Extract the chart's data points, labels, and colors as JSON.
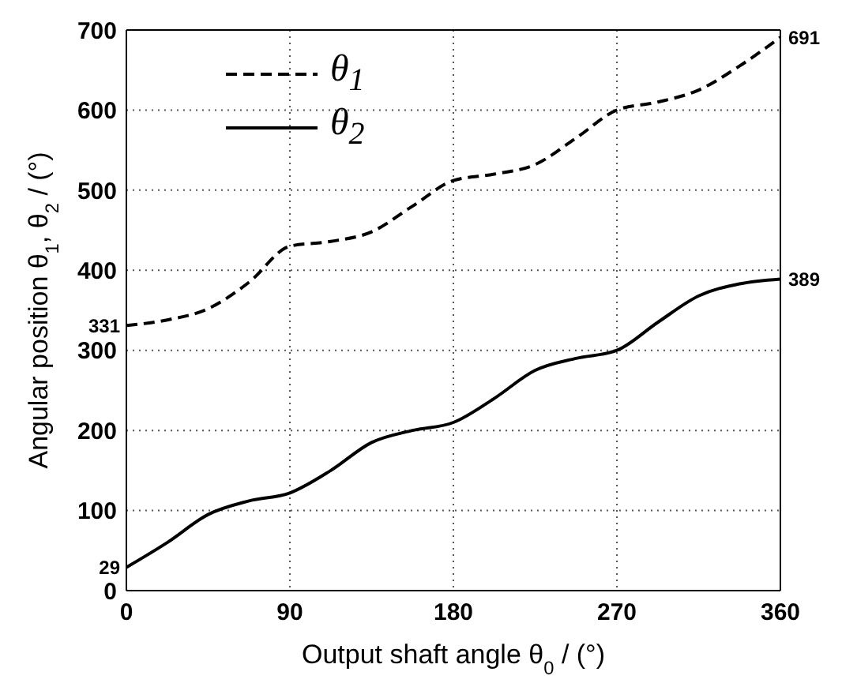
{
  "chart_data": {
    "type": "line",
    "xlabel": "Output shaft angle θ$_{0}$ / (°)",
    "ylabel": "Angular position θ$_{1}$, θ$_{2}$ / (°)",
    "x": [
      0,
      22.5,
      45,
      67.5,
      90,
      112.5,
      135,
      157.5,
      180,
      202.5,
      225,
      247.5,
      270,
      292.5,
      315,
      337.5,
      360
    ],
    "series": [
      {
        "name": "θ$_{1}$",
        "color": "#000000",
        "line_style": "dashed",
        "values": [
          331,
          338,
          352,
          385,
          430,
          436,
          448,
          480,
          512,
          520,
          532,
          565,
          600,
          610,
          625,
          655,
          691
        ],
        "value_labels": [
          "331",
          null,
          null,
          null,
          null,
          null,
          null,
          null,
          null,
          null,
          null,
          null,
          null,
          null,
          null,
          null,
          "691"
        ]
      },
      {
        "name": "θ$_{2}$",
        "color": "#000000",
        "line_style": "solid",
        "values": [
          29,
          60,
          95,
          112,
          122,
          150,
          185,
          200,
          210,
          240,
          275,
          290,
          300,
          335,
          368,
          383,
          389
        ],
        "value_labels": [
          "29",
          null,
          null,
          null,
          null,
          null,
          null,
          null,
          null,
          null,
          null,
          null,
          null,
          null,
          null,
          null,
          "389"
        ]
      }
    ],
    "xlim": [
      0,
      360
    ],
    "xticks": [
      0,
      90,
      180,
      270,
      360
    ],
    "ylim": [
      0,
      700
    ],
    "yticks": [
      0,
      100,
      200,
      300,
      400,
      500,
      600,
      700
    ],
    "grid": true,
    "legend": "top left",
    "marker": "none"
  }
}
